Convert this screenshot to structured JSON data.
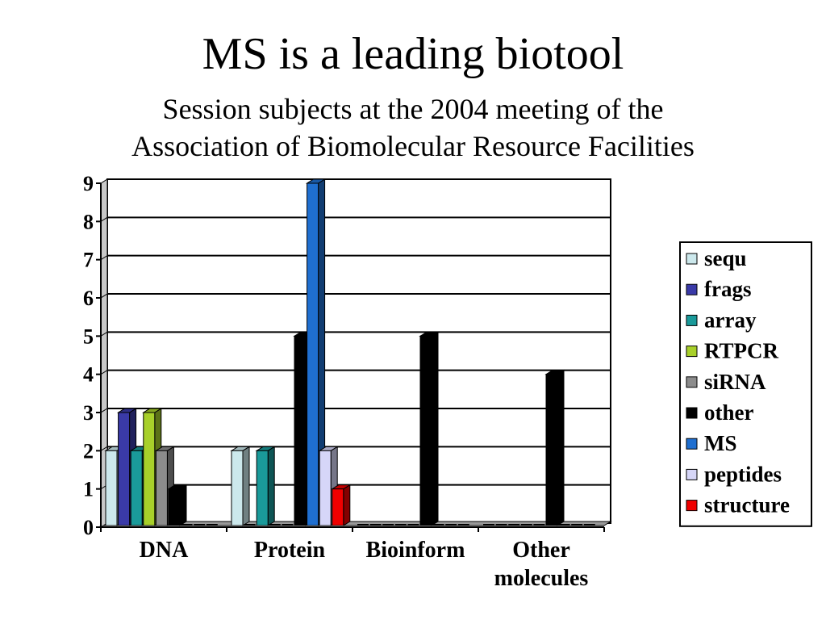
{
  "slide": {
    "title": "MS is a leading biotool",
    "subtitle_line1": "Session subjects at the 2004 meeting of the",
    "subtitle_line2": "Association of Biomolecular Resource Facilities"
  },
  "chart_data": {
    "type": "bar",
    "title": "",
    "xlabel": "",
    "ylabel": "",
    "ylim": [
      0,
      9
    ],
    "yticks": [
      0,
      1,
      2,
      3,
      4,
      5,
      6,
      7,
      8,
      9
    ],
    "grid": true,
    "legend_position": "right",
    "categories": [
      [
        "DNA"
      ],
      [
        "Protein"
      ],
      [
        "Bioinform"
      ],
      [
        "Other",
        "molecules"
      ]
    ],
    "series": [
      {
        "name": "sequ",
        "color": "#cce8ec",
        "values": [
          2,
          2,
          0,
          0
        ]
      },
      {
        "name": "frags",
        "color": "#3a3aa8",
        "values": [
          3,
          0,
          0,
          0
        ]
      },
      {
        "name": "array",
        "color": "#1a9a9a",
        "values": [
          2,
          2,
          0,
          0
        ]
      },
      {
        "name": "RTPCR",
        "color": "#a8d02a",
        "values": [
          3,
          0,
          0,
          0
        ]
      },
      {
        "name": "siRNA",
        "color": "#8c8c8c",
        "values": [
          2,
          0,
          0,
          0
        ]
      },
      {
        "name": "other",
        "color": "#000000",
        "values": [
          1,
          5,
          5,
          4
        ]
      },
      {
        "name": "MS",
        "color": "#1f6fd0",
        "values": [
          0,
          9,
          0,
          0
        ]
      },
      {
        "name": "peptides",
        "color": "#d6d6f8",
        "values": [
          0,
          2,
          0,
          0
        ]
      },
      {
        "name": "structure",
        "color": "#f00000",
        "values": [
          0,
          1,
          0,
          0
        ]
      }
    ]
  }
}
